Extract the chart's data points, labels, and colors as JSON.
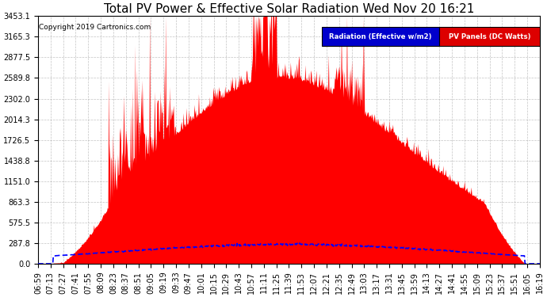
{
  "title": "Total PV Power & Effective Solar Radiation Wed Nov 20 16:21",
  "copyright": "Copyright 2019 Cartronics.com",
  "legend_radiation": "Radiation (Effective w/m2)",
  "legend_pv": "PV Panels (DC Watts)",
  "yticks": [
    0.0,
    287.8,
    575.5,
    863.3,
    1151.0,
    1438.8,
    1726.5,
    2014.3,
    2302.0,
    2589.8,
    2877.5,
    3165.3,
    3453.1
  ],
  "ymax": 3453.1,
  "background_color": "#ffffff",
  "plot_bg_color": "#ffffff",
  "grid_color": "#aaaaaa",
  "pv_fill_color": "#ff0000",
  "radiation_line_color": "#0000ff",
  "title_fontsize": 11,
  "tick_fontsize": 7,
  "xtick_labels": [
    "06:59",
    "07:13",
    "07:27",
    "07:41",
    "07:55",
    "08:09",
    "08:23",
    "08:37",
    "08:51",
    "09:05",
    "09:19",
    "09:33",
    "09:47",
    "10:01",
    "10:15",
    "10:29",
    "10:43",
    "10:57",
    "11:11",
    "11:25",
    "11:39",
    "11:53",
    "12:07",
    "12:21",
    "12:35",
    "12:49",
    "13:03",
    "13:17",
    "13:31",
    "13:45",
    "13:59",
    "14:13",
    "14:27",
    "14:41",
    "14:55",
    "15:09",
    "15:23",
    "15:37",
    "15:51",
    "16:05",
    "16:19"
  ]
}
